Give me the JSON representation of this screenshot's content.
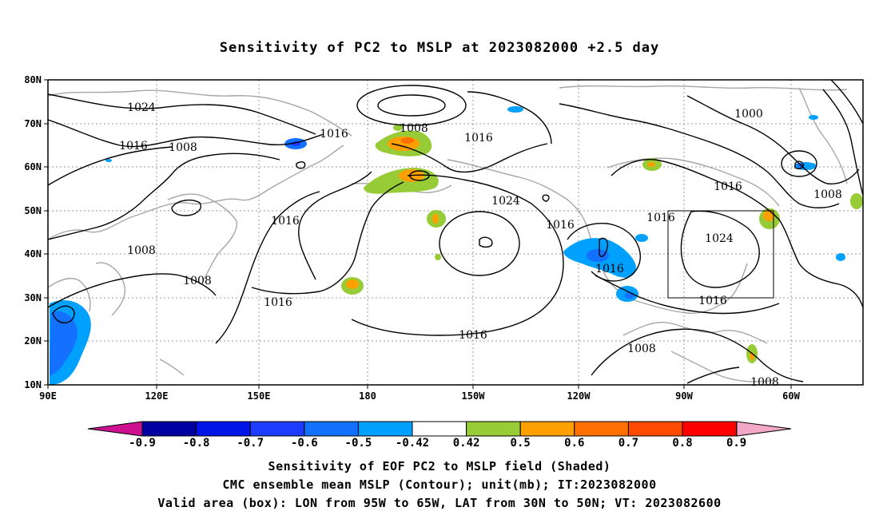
{
  "title": "Sensitivity of PC2 to MSLP at 2023082000 +2.5 day",
  "lat_labels": [
    "80N",
    "70N",
    "60N",
    "50N",
    "40N",
    "30N",
    "20N",
    "10N"
  ],
  "lon_labels": [
    "90E",
    "120E",
    "150E",
    "180",
    "150W",
    "120W",
    "90W",
    "60W"
  ],
  "contour_labels": [
    "1024",
    "1016",
    "1008",
    "1016",
    "1008",
    "1000",
    "1016",
    "1008",
    "1016",
    "1024",
    "1016",
    "1016",
    "1016",
    "1024",
    "1016",
    "1008",
    "1016",
    "1008",
    "1016",
    "1008",
    "1008"
  ],
  "colorbar": {
    "labels": [
      "-0.9",
      "-0.8",
      "-0.7",
      "-0.6",
      "-0.5",
      "-0.42",
      "0.42",
      "0.5",
      "0.6",
      "0.7",
      "0.8",
      "0.9"
    ],
    "colors": [
      "#0000a0",
      "#0015e8",
      "#1e3cff",
      "#1470ff",
      "#00a0ff",
      "#ffffff",
      "#98cc36",
      "#ffa000",
      "#ff7000",
      "#ff4a00",
      "#ff0000"
    ],
    "low_end_color": "#cc1090",
    "high_end_color": "#f4a8c8"
  },
  "valid_box": {
    "lon_from": "95W",
    "lon_to": "65W",
    "lat_from": "30N",
    "lat_to": "50N"
  },
  "captions": [
    "Sensitivity of EOF PC2 to MSLP field (Shaded)",
    "CMC ensemble mean MSLP (Contour); unit(mb); IT:2023082000",
    "Valid area (box): LON from 95W to 65W, LAT from 30N to 50N; VT: 2023082600"
  ]
}
